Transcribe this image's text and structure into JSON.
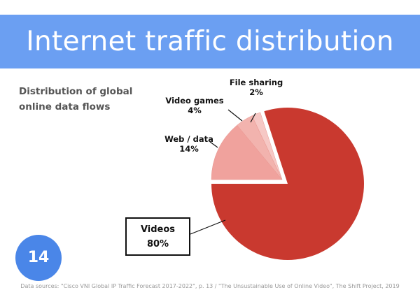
{
  "header": {
    "title": "Internet traffic distribution"
  },
  "subtitle_line1": "Distribution of global",
  "subtitle_line2": "online data flows",
  "page_number": "14",
  "source": "Data sources: \"Cisco VNI Global IP Traffic Forecast 2017-2022\", p. 13 / \"The Unsustainable Use of Online Video\", The Shift Project, 2019",
  "chart_data": {
    "type": "pie",
    "title": "",
    "slices": [
      {
        "label": "Videos",
        "value": 80,
        "display": "80%",
        "color": "#c9392f",
        "exploded": false
      },
      {
        "label": "Web / data",
        "value": 14,
        "display": "14%",
        "color": "#f0a29d",
        "exploded": true
      },
      {
        "label": "Video games",
        "value": 4,
        "display": "4%",
        "color": "#f2b3ae",
        "exploded": true
      },
      {
        "label": "File sharing",
        "value": 2,
        "display": "2%",
        "color": "#f6c8c5",
        "exploded": true
      }
    ]
  }
}
